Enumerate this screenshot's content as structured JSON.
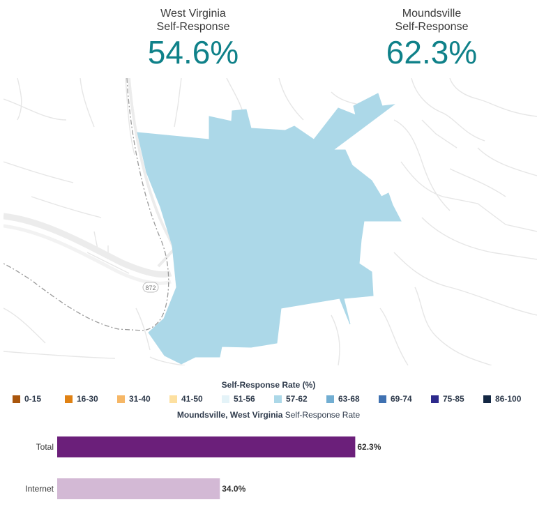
{
  "stats": {
    "state": {
      "label_line1": "West Virginia",
      "label_line2": "Self-Response",
      "value": "54.6%"
    },
    "city": {
      "label_line1": "Moundsville",
      "label_line2": "Self-Response",
      "value": "62.3%"
    }
  },
  "map": {
    "road_label": "872",
    "fill_color": "#acd8e8"
  },
  "legend": {
    "title": "Self-Response Rate (%)",
    "items": [
      {
        "label": "0-15",
        "color": "#a9560d"
      },
      {
        "label": "16-30",
        "color": "#e08214"
      },
      {
        "label": "31-40",
        "color": "#f6b766"
      },
      {
        "label": "41-50",
        "color": "#fde0a0"
      },
      {
        "label": "51-56",
        "color": "#e4f3f8"
      },
      {
        "label": "57-62",
        "color": "#acd8e8"
      },
      {
        "label": "63-68",
        "color": "#72aed2"
      },
      {
        "label": "69-74",
        "color": "#3f71b1"
      },
      {
        "label": "75-85",
        "color": "#2d2a8c"
      },
      {
        "label": "86-100",
        "color": "#132743"
      }
    ]
  },
  "bar_chart": {
    "title_bold": "Moundsville, West Virginia",
    "title_rest": " Self-Response Rate"
  },
  "chart_data": {
    "type": "bar",
    "orientation": "horizontal",
    "categories": [
      "Total",
      "Internet"
    ],
    "values": [
      62.3,
      34.0
    ],
    "value_labels": [
      "62.3%",
      "34.0%"
    ],
    "colors": [
      "#6b1f7a",
      "#d3b9d5"
    ],
    "xlim": [
      0,
      100
    ],
    "grid": false
  }
}
